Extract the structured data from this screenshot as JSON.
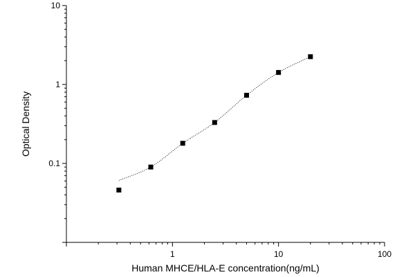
{
  "chart_data": {
    "type": "scatter",
    "title": "",
    "xlabel": "Human MHCE/HLA-E concentration(ng/mL)",
    "ylabel": "Optical Density",
    "x_scale": "log",
    "y_scale": "log",
    "xlim": [
      0.1,
      100
    ],
    "ylim": [
      0.01,
      10
    ],
    "x_tick_labels": [
      "1",
      "10",
      "100"
    ],
    "y_tick_labels": [
      "0.1",
      "1",
      "10"
    ],
    "grid": false,
    "legend": "none",
    "marker_color": "#000000",
    "fit_line_style": "dotted",
    "x": [
      0.3125,
      0.625,
      1.25,
      2.5,
      5,
      10,
      20
    ],
    "y": [
      0.046,
      0.09,
      0.18,
      0.33,
      0.73,
      1.42,
      2.25
    ]
  }
}
